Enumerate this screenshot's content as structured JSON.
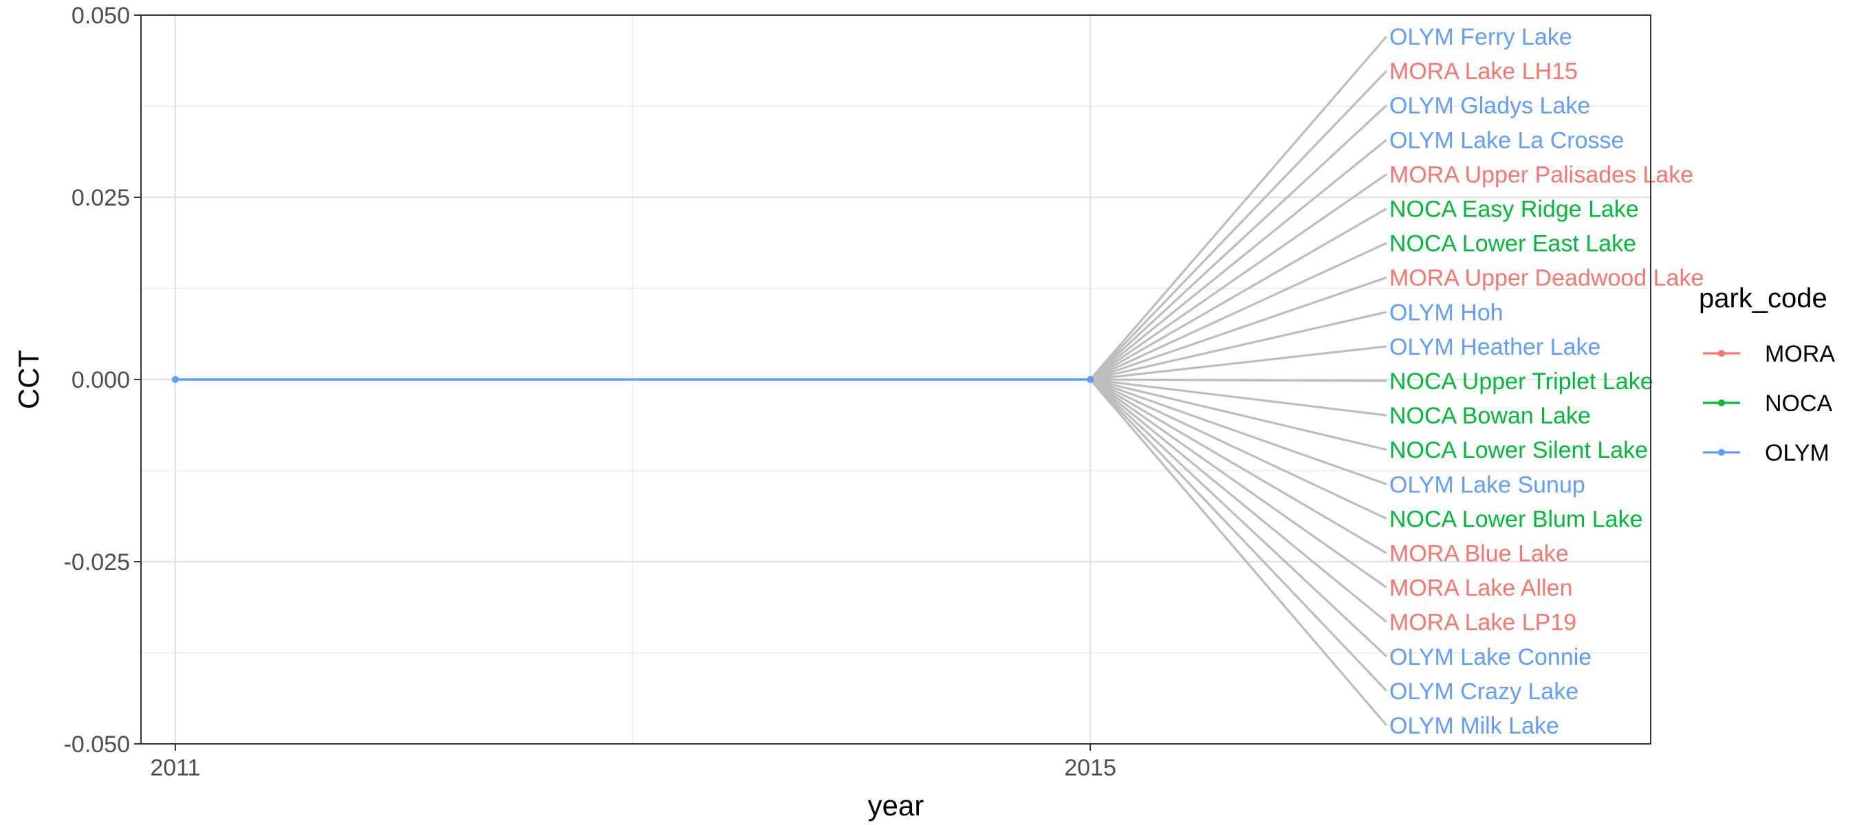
{
  "chart_data": {
    "type": "line",
    "xlabel": "year",
    "ylabel": "CCT",
    "xlim": [
      2010.85,
      2017.45
    ],
    "ylim": [
      -0.05,
      0.05
    ],
    "x_ticks": [
      2011,
      2015
    ],
    "x_tick_labels": [
      "2011",
      "2015"
    ],
    "y_ticks": [
      -0.05,
      -0.025,
      0.0,
      0.025,
      0.05
    ],
    "y_tick_labels": [
      "-0.050",
      "-0.025",
      "0.000",
      "0.025",
      "0.050"
    ],
    "grid": true,
    "legend": {
      "title": "park_code",
      "position": "right",
      "entries": [
        {
          "name": "MORA",
          "color": "#F8766D"
        },
        {
          "name": "NOCA",
          "color": "#00BA38"
        },
        {
          "name": "OLYM",
          "color": "#619CFF"
        }
      ]
    },
    "series": [
      {
        "name": "MORA",
        "color": "#F8766D",
        "points": [
          {
            "x": 2015,
            "y": 0.0
          }
        ]
      },
      {
        "name": "NOCA",
        "color": "#00BA38",
        "points": [
          {
            "x": 2011,
            "y": 0.0
          },
          {
            "x": 2015,
            "y": 0.0
          }
        ]
      },
      {
        "name": "OLYM",
        "color": "#619CFF",
        "points": [
          {
            "x": 2011,
            "y": 0.0
          },
          {
            "x": 2015,
            "y": 0.0
          }
        ]
      }
    ],
    "labels": [
      {
        "text": "OLYM Ferry Lake",
        "park": "OLYM"
      },
      {
        "text": "MORA Lake LH15",
        "park": "MORA"
      },
      {
        "text": "OLYM Gladys Lake",
        "park": "OLYM"
      },
      {
        "text": "OLYM Lake La Crosse",
        "park": "OLYM"
      },
      {
        "text": "MORA Upper Palisades Lake",
        "park": "MORA"
      },
      {
        "text": "NOCA Easy Ridge Lake",
        "park": "NOCA"
      },
      {
        "text": "NOCA Lower East Lake",
        "park": "NOCA"
      },
      {
        "text": "MORA Upper Deadwood Lake",
        "park": "MORA"
      },
      {
        "text": "OLYM Hoh",
        "park": "OLYM"
      },
      {
        "text": "OLYM Heather Lake",
        "park": "OLYM"
      },
      {
        "text": "NOCA Upper Triplet Lake",
        "park": "NOCA"
      },
      {
        "text": "NOCA Bowan Lake",
        "park": "NOCA"
      },
      {
        "text": "NOCA Lower Silent Lake",
        "park": "NOCA"
      },
      {
        "text": "OLYM Lake Sunup",
        "park": "OLYM"
      },
      {
        "text": "NOCA Lower Blum Lake",
        "park": "NOCA"
      },
      {
        "text": "MORA Blue Lake",
        "park": "MORA"
      },
      {
        "text": "MORA Lake Allen",
        "park": "MORA"
      },
      {
        "text": "MORA Lake LP19",
        "park": "MORA"
      },
      {
        "text": "OLYM Lake Connie",
        "park": "OLYM"
      },
      {
        "text": "OLYM Crazy Lake",
        "park": "OLYM"
      },
      {
        "text": "OLYM Milk Lake",
        "park": "OLYM"
      }
    ]
  }
}
